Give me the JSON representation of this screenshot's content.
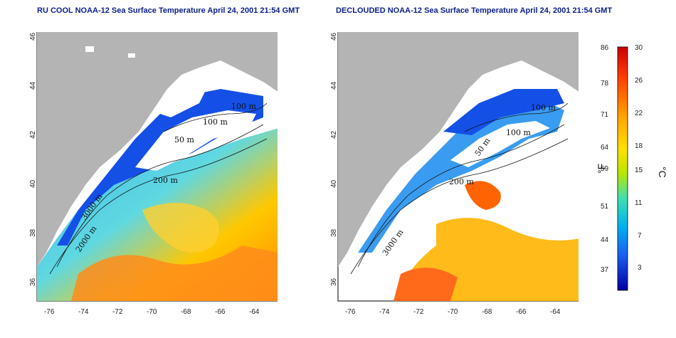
{
  "panels": [
    {
      "id": "ru-cool",
      "title": "RU COOL NOAA-12 Sea Surface Temperature April 24, 2001 21:54 GMT"
    },
    {
      "id": "declouded",
      "title": "DECLOUDED NOAA-12 Sea Surface Temperature April 24, 2001 21:54 GMT"
    }
  ],
  "axes": {
    "lat_ticks": [
      "36",
      "38",
      "40",
      "42",
      "44",
      "46"
    ],
    "lon_ticks": [
      "-76",
      "-74",
      "-72",
      "-70",
      "-68",
      "-66",
      "-64"
    ],
    "lat_range": [
      35,
      46
    ],
    "lon_range": [
      -77.2,
      -62.8
    ]
  },
  "contour_labels_left": [
    "100 m",
    "100 m",
    "50 m",
    "200 m",
    "2000 m",
    "3000 m"
  ],
  "contour_labels_right": [
    "100 m",
    "100 m",
    "50 m",
    "200 m",
    "3000 m"
  ],
  "colorbar": {
    "fahrenheit_ticks": [
      "86",
      "78",
      "71",
      "64",
      "59",
      "51",
      "44",
      "37"
    ],
    "celsius_ticks": [
      "30",
      "26",
      "22",
      "18",
      "15",
      "11",
      "7",
      "3"
    ],
    "f_label": "°F",
    "c_label": "°C",
    "colors": [
      "#ff0000",
      "#ff7a00",
      "#ffd200",
      "#b8e600",
      "#40e0a0",
      "#00b8e8",
      "#1e6cf0",
      "#1a1ad8",
      "#000080"
    ]
  },
  "map_colors": {
    "land": "#b4b4b4",
    "cloud": "#ffffff",
    "cold": "#1450e6",
    "cool": "#3ab4f0",
    "mild": "#7ee8b4",
    "warm": "#ffc800",
    "hot": "#ff6400"
  }
}
